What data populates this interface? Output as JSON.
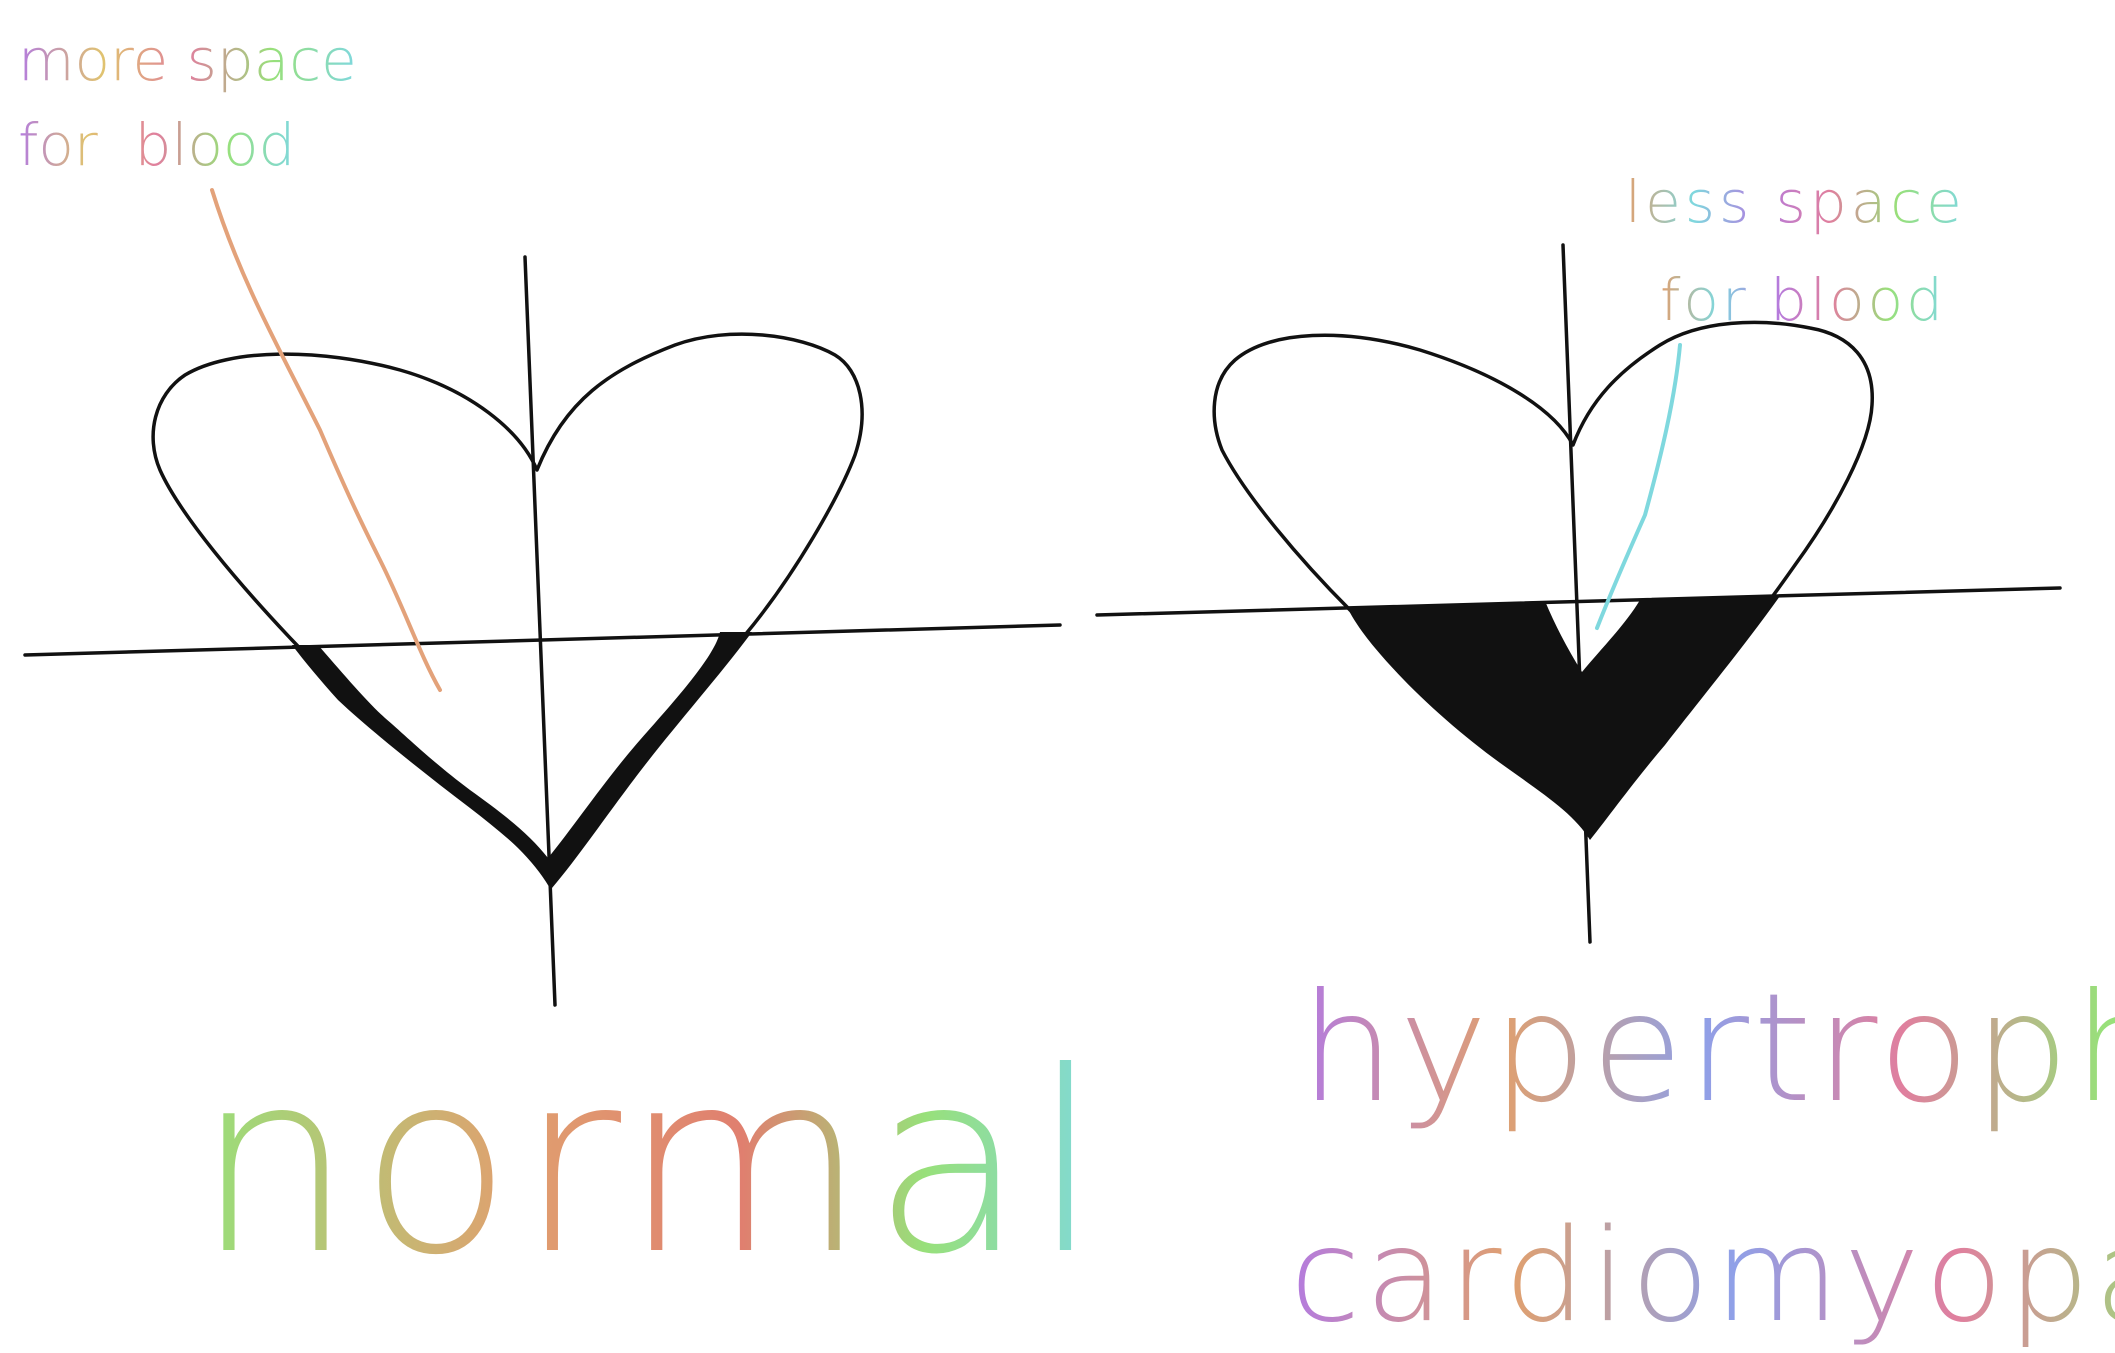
{
  "panels": [
    {
      "id": "normal",
      "caption": "normal",
      "annotation_line1": "more space",
      "annotation_line2": "for  blood"
    },
    {
      "id": "hypertrophic",
      "caption_line1": "hypertrophic",
      "caption_line2": "cardiomyopathy",
      "annotation_line1": "less space",
      "annotation_line2": "for blood"
    }
  ],
  "colors": {
    "ink": "#111111",
    "pointer_normal": "#e3a27a",
    "pointer_hcm": "#7fd8de",
    "rainbow": [
      "#b37be0",
      "#e0a06f",
      "#e07f9e",
      "#f0c36f",
      "#98e07a",
      "#7fd8de",
      "#8fa0e8",
      "#e7d86f"
    ]
  }
}
